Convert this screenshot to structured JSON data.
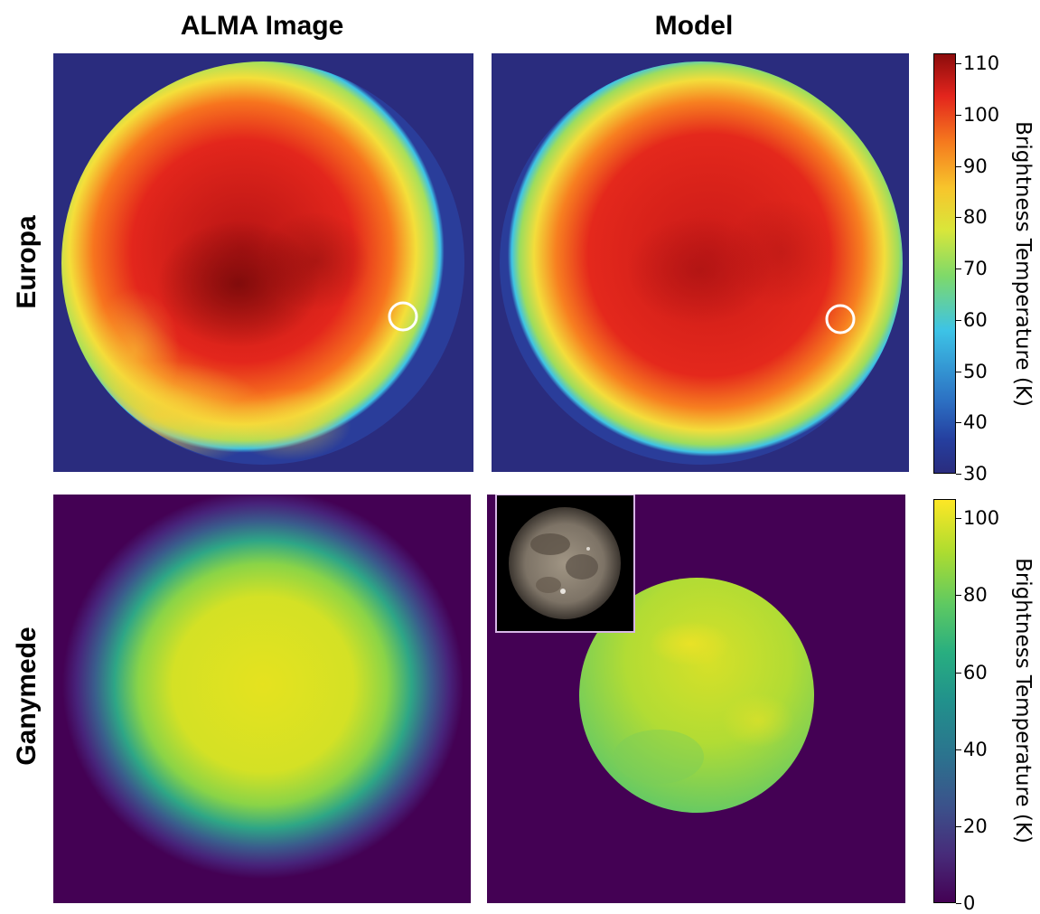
{
  "columns": {
    "left_title": "ALMA Image",
    "right_title": "Model"
  },
  "rows": {
    "top_label": "Europa",
    "bottom_label": "Ganymede"
  },
  "europa_colorbar": {
    "label": "Brightness Temperature (K)",
    "ticks": [
      "110",
      "100",
      "90",
      "80",
      "70",
      "60",
      "50",
      "40",
      "30"
    ],
    "range": [
      30,
      112
    ],
    "colormap": "jet",
    "colors": {
      "background": "#2a2c7e",
      "edge": "#3dc3e6",
      "mid": "#f5e23c",
      "hot": "#e3251d",
      "hottest": "#8c0c0c"
    }
  },
  "ganymede_colorbar": {
    "label": "Brightness Temperature (K)",
    "ticks": [
      "100",
      "80",
      "60",
      "40",
      "20",
      "0"
    ],
    "range": [
      0,
      105
    ],
    "colormap": "viridis",
    "colors": {
      "background": "#440154",
      "mid": "#21918c",
      "bright": "#d8e219",
      "top": "#fde725"
    }
  },
  "annotations": {
    "europa_marker": "white circle",
    "ganymede_inset": "visible-light photo of Ganymede"
  }
}
